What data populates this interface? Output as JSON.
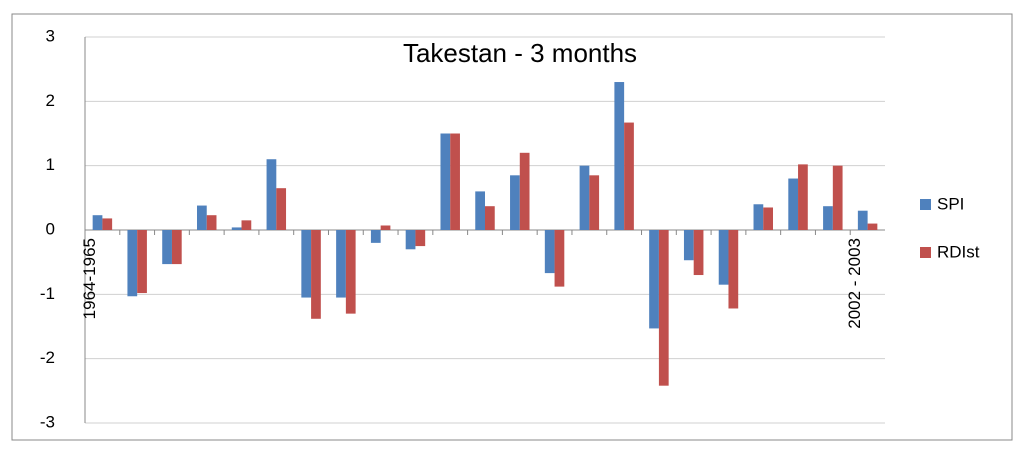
{
  "chart_data": {
    "type": "bar",
    "title": "Takestan - 3 months",
    "categories": [
      "1964-1965",
      null,
      null,
      null,
      null,
      null,
      null,
      null,
      null,
      null,
      null,
      null,
      null,
      null,
      null,
      null,
      null,
      null,
      null,
      null,
      null,
      null,
      "2002 - 2003"
    ],
    "series": [
      {
        "name": "SPI",
        "color": "#4f81bd",
        "values": [
          0.23,
          -1.03,
          -0.53,
          0.38,
          0.04,
          1.1,
          -1.05,
          -1.05,
          -0.2,
          -0.3,
          1.5,
          0.6,
          0.85,
          -0.67,
          1.0,
          2.3,
          -1.53,
          -0.47,
          -0.85,
          0.4,
          0.8,
          0.37,
          0.3
        ]
      },
      {
        "name": "RDIst",
        "color": "#c0504d",
        "values": [
          0.18,
          -0.98,
          -0.53,
          0.23,
          0.15,
          0.65,
          -1.38,
          -1.3,
          0.07,
          -0.25,
          1.5,
          0.37,
          1.2,
          -0.88,
          0.85,
          1.67,
          -2.42,
          -0.7,
          -1.22,
          0.35,
          1.02,
          1.0,
          0.1
        ]
      }
    ],
    "ylim": [
      -3,
      3
    ],
    "yticks": [
      -3,
      -2,
      -1,
      0,
      1,
      2,
      3
    ],
    "grid": true,
    "legend": "right"
  }
}
